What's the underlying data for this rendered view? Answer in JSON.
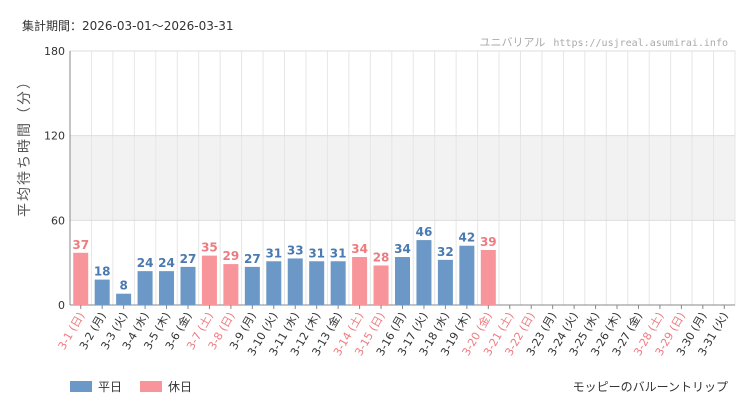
{
  "header": {
    "period_label": "集計期間：2026-03-01〜2026-03-31",
    "site_name": "ユニバリアル",
    "site_domain": "https://usjreal.asumirai.info"
  },
  "footer": {
    "attraction": "モッピーのバルーントリップ"
  },
  "colors": {
    "weekday": "#6b98c6",
    "holiday": "#f7959a",
    "weekday_label": "#4a7ab0",
    "holiday_label": "#ee7b80",
    "band": "#f2f2f2"
  },
  "chart_data": {
    "type": "bar",
    "ylabel": "平均待ち時間（分）",
    "ylim": [
      0,
      180
    ],
    "yticks": [
      0,
      60,
      120,
      180
    ],
    "grid": true,
    "legend_position": "bottom-left",
    "legend": [
      {
        "key": "weekday",
        "label": "平日"
      },
      {
        "key": "holiday",
        "label": "休日"
      }
    ],
    "categories": [
      "3-1 (日)",
      "3-2 (月)",
      "3-3 (火)",
      "3-4 (水)",
      "3-5 (木)",
      "3-6 (金)",
      "3-7 (土)",
      "3-8 (日)",
      "3-9 (月)",
      "3-10 (火)",
      "3-11 (水)",
      "3-12 (木)",
      "3-13 (金)",
      "3-14 (土)",
      "3-15 (日)",
      "3-16 (月)",
      "3-17 (火)",
      "3-18 (水)",
      "3-19 (木)",
      "3-20 (金)",
      "3-21 (土)",
      "3-22 (日)",
      "3-23 (月)",
      "3-24 (火)",
      "3-25 (水)",
      "3-26 (木)",
      "3-27 (金)",
      "3-28 (土)",
      "3-29 (日)",
      "3-30 (月)",
      "3-31 (火)"
    ],
    "values": [
      37,
      18,
      8,
      24,
      24,
      27,
      35,
      29,
      27,
      31,
      33,
      31,
      31,
      34,
      28,
      34,
      46,
      32,
      42,
      39,
      null,
      null,
      null,
      null,
      null,
      null,
      null,
      null,
      null,
      null,
      null
    ],
    "day_type": [
      "holiday",
      "weekday",
      "weekday",
      "weekday",
      "weekday",
      "weekday",
      "holiday",
      "holiday",
      "weekday",
      "weekday",
      "weekday",
      "weekday",
      "weekday",
      "holiday",
      "holiday",
      "weekday",
      "weekday",
      "weekday",
      "weekday",
      "holiday",
      "holiday",
      "holiday",
      "weekday",
      "weekday",
      "weekday",
      "weekday",
      "weekday",
      "holiday",
      "holiday",
      "weekday",
      "weekday"
    ]
  }
}
